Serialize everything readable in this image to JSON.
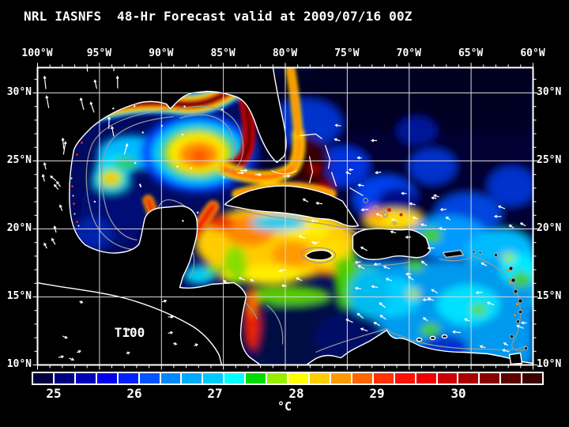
{
  "title": "NRL IASNFS  48-Hr Forecast valid at 2009/07/16 00Z",
  "map": {
    "field_label": "T100",
    "lon_ticks": [
      "100°W",
      "95°W",
      "90°W",
      "85°W",
      "80°W",
      "75°W",
      "70°W",
      "65°W",
      "60°W"
    ],
    "lat_ticks": [
      "30°N",
      "25°N",
      "20°N",
      "15°N",
      "10°N"
    ],
    "grid_color": "#d8d8d8",
    "coastline_color": "#ffffff",
    "contour_color": "#999999",
    "land_color": "#000000",
    "vector_color": "#ffffff"
  },
  "colorbar": {
    "unit": "°C",
    "tick_labels": [
      "25",
      "26",
      "27",
      "28",
      "29",
      "30"
    ],
    "cell_colors": [
      "#000042",
      "#000080",
      "#0000b8",
      "#0000ee",
      "#0022ff",
      "#0055ff",
      "#0088ff",
      "#00aaff",
      "#00ccff",
      "#00ffff",
      "#00dd00",
      "#99ee00",
      "#ffff00",
      "#ffcc00",
      "#ff9900",
      "#ff6600",
      "#ff3300",
      "#ff1100",
      "#ee0000",
      "#cc0000",
      "#aa0000",
      "#880000",
      "#5c0000",
      "#3a0000"
    ]
  }
}
